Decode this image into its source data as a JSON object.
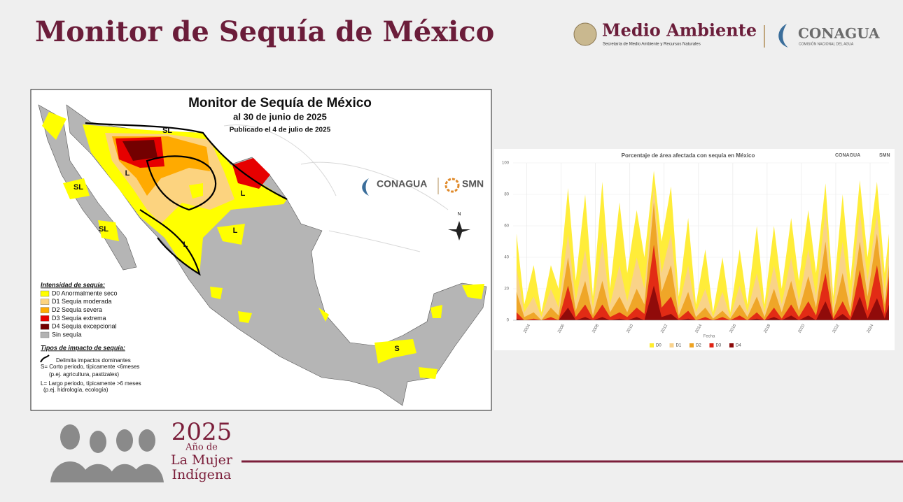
{
  "header": {
    "title": "Monitor de Sequía de México",
    "logo_semarnat": "Medio Ambiente",
    "logo_semarnat_sub": "Secretaría de Medio Ambiente y Recursos Naturales",
    "logo_conagua": "CONAGUA",
    "logo_conagua_sub": "COMISIÓN NACIONAL DEL AGUA"
  },
  "map": {
    "title": "Monitor de Sequía de México",
    "subtitle": "al 30 de junio de 2025",
    "published": "Publicado el 4 de julio de 2025",
    "logo_conagua": "CONAGUA",
    "logo_smn": "SMN",
    "north": "N",
    "legend_title": "Intensidad de sequía:",
    "legend": [
      {
        "label": "D0 Anormalmente seco",
        "color": "#ffff00"
      },
      {
        "label": "D1 Sequía moderada",
        "color": "#fcd37f"
      },
      {
        "label": "D2 Sequía severa",
        "color": "#ffaa00"
      },
      {
        "label": "D3 Sequía extrema",
        "color": "#e60000"
      },
      {
        "label": "D4 Sequía excepcional",
        "color": "#730000"
      },
      {
        "label": "Sin sequía",
        "color": "#b2b2b2"
      }
    ],
    "impact_title": "Tipos de impacto de sequía:",
    "impact_line": "Delimita impactos dominantes",
    "impact_s": "S= Corto periodo, típicamente <6meses",
    "impact_s_ex": "(p.ej. agricultura, pastizales)",
    "impact_l": "L= Largo periodo, típicamente >6 meses",
    "impact_l_ex": "(p.ej. hidrología, ecología)",
    "region_labels": [
      "SL",
      "L",
      "L",
      "SL",
      "SL",
      "L",
      "L",
      "S"
    ]
  },
  "chart_data": {
    "type": "area",
    "title": "Porcentaje de área afectada con sequía en México",
    "xlabel": "Fecha",
    "logo_conagua": "CONAGUA",
    "logo_smn": "SMN",
    "x": [
      2003.4,
      2003.85,
      2004.4,
      2004.85,
      2005.4,
      2005.85,
      2006.4,
      2006.85,
      2007.4,
      2007.85,
      2008.4,
      2008.85,
      2009.4,
      2009.85,
      2010.4,
      2010.85,
      2011.4,
      2011.85,
      2012.4,
      2012.85,
      2013.4,
      2013.85,
      2014.4,
      2014.85,
      2015.4,
      2015.85,
      2016.4,
      2016.85,
      2017.4,
      2017.85,
      2018.4,
      2018.85,
      2019.4,
      2019.85,
      2020.4,
      2020.85,
      2021.4,
      2021.85,
      2022.4,
      2022.85,
      2023.4,
      2023.85,
      2024.4,
      2024.85,
      2025.1
    ],
    "series": [
      {
        "name": "D0",
        "color": "#ffec2e",
        "values": [
          55,
          10,
          35,
          5,
          35,
          20,
          84,
          25,
          80,
          15,
          88,
          20,
          75,
          30,
          70,
          40,
          95,
          50,
          85,
          15,
          65,
          10,
          45,
          5,
          40,
          5,
          45,
          10,
          60,
          10,
          60,
          20,
          65,
          25,
          70,
          30,
          87,
          15,
          80,
          25,
          89,
          40,
          88,
          30,
          55
        ]
      },
      {
        "name": "D1",
        "color": "#f9d28c",
        "values": [
          33,
          5,
          15,
          2,
          20,
          8,
          55,
          12,
          45,
          8,
          50,
          10,
          35,
          12,
          40,
          20,
          85,
          30,
          55,
          8,
          35,
          5,
          20,
          2,
          18,
          2,
          22,
          5,
          30,
          5,
          35,
          10,
          40,
          12,
          45,
          15,
          70,
          8,
          50,
          12,
          70,
          25,
          68,
          18,
          45
        ]
      },
      {
        "name": "D2",
        "color": "#eea323",
        "values": [
          18,
          2,
          5,
          0,
          8,
          3,
          40,
          6,
          25,
          3,
          25,
          5,
          15,
          5,
          20,
          10,
          75,
          18,
          35,
          3,
          18,
          2,
          8,
          1,
          6,
          1,
          10,
          2,
          15,
          2,
          20,
          5,
          25,
          6,
          28,
          8,
          50,
          4,
          30,
          6,
          50,
          15,
          55,
          10,
          35
        ]
      },
      {
        "name": "D3",
        "color": "#e02414",
        "values": [
          5,
          0,
          1,
          0,
          2,
          0,
          22,
          2,
          10,
          1,
          10,
          2,
          5,
          2,
          8,
          4,
          48,
          8,
          15,
          1,
          6,
          0,
          2,
          0,
          2,
          0,
          3,
          0,
          5,
          0,
          8,
          1,
          10,
          2,
          12,
          3,
          30,
          1,
          12,
          2,
          32,
          6,
          35,
          4,
          28
        ]
      },
      {
        "name": "D4",
        "color": "#8b0a0a",
        "values": [
          1,
          0,
          0,
          0,
          0,
          0,
          8,
          0,
          2,
          0,
          2,
          0,
          1,
          0,
          2,
          0,
          22,
          2,
          4,
          0,
          1,
          0,
          0,
          0,
          0,
          0,
          0,
          0,
          1,
          0,
          2,
          0,
          3,
          0,
          3,
          0,
          12,
          0,
          4,
          0,
          15,
          1,
          14,
          1,
          10
        ]
      }
    ],
    "xlim": [
      2003.2,
      2025.1
    ],
    "xticks": [
      2004,
      2006,
      2008,
      2010,
      2012,
      2014,
      2016,
      2018,
      2020,
      2022,
      2024
    ],
    "ylim": [
      0,
      100
    ],
    "yticks": [
      0,
      20,
      40,
      60,
      80,
      100
    ],
    "grid": true,
    "legend": "bottom"
  },
  "footer": {
    "year": "2025",
    "line1": "Año de",
    "line2": "La Mujer",
    "line3": "Indígena"
  }
}
